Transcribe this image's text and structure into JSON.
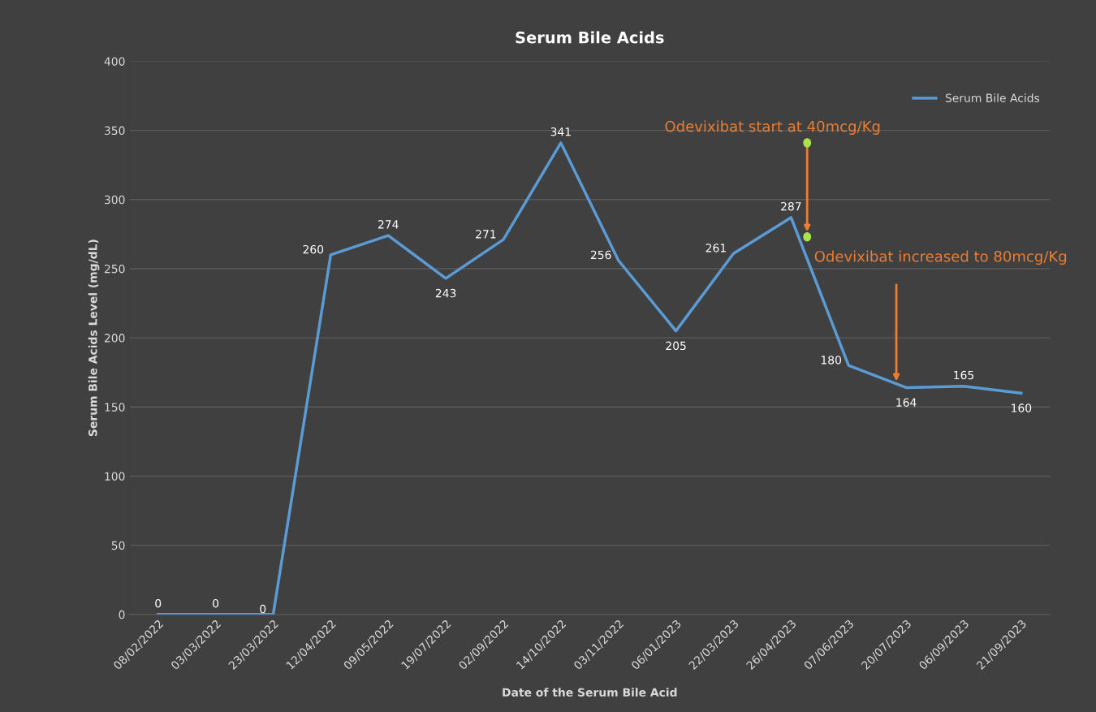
{
  "chart_data": {
    "type": "line",
    "title": "Serum Bile Acids",
    "xlabel": "Date of the Serum Bile Acid",
    "ylabel": "Serum Bile Acids Level (mg/dL)",
    "categories": [
      "08/02/2022",
      "03/03/2022",
      "23/03/2022",
      "12/04/2022",
      "09/05/2022",
      "19/07/2022",
      "02/09/2022",
      "14/10/2022",
      "03/11/2022",
      "06/01/2023",
      "22/03/2023",
      "26/04/2023",
      "07/06/2023",
      "20/07/2023",
      "06/09/2023",
      "21/09/2023"
    ],
    "series": [
      {
        "name": "Serum Bile Acids",
        "color": "#5b9bd5",
        "values": [
          0,
          0,
          0,
          260,
          274,
          243,
          271,
          341,
          256,
          205,
          261,
          287,
          180,
          164,
          165,
          160
        ]
      }
    ],
    "ylim": [
      0,
      400
    ],
    "yticks": [
      0,
      50,
      100,
      150,
      200,
      250,
      300,
      350,
      400
    ],
    "grid": "y",
    "legend": "top right",
    "data_labels": true,
    "marker": "none",
    "annotations": [
      "Odevixibat start at 40mcg/Kg",
      "Odevixibat increased to 80mcg/Kg"
    ]
  }
}
